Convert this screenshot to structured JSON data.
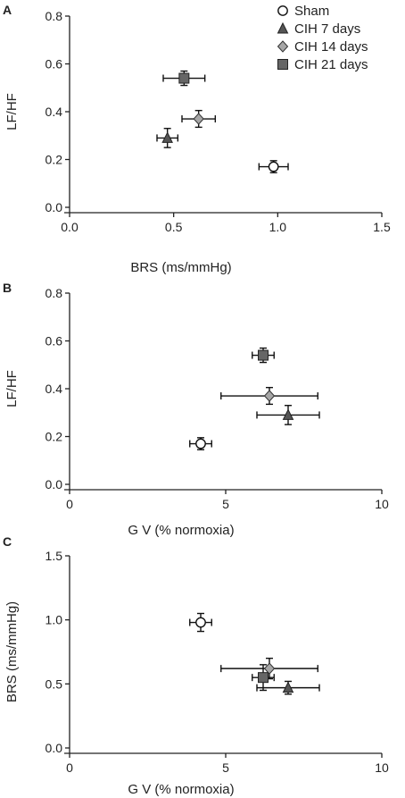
{
  "figure": {
    "legend": [
      {
        "name": "Sham",
        "marker": "circle",
        "fill": "#ffffff"
      },
      {
        "name": "CIH 7 days",
        "marker": "triangle",
        "fill": "#555555"
      },
      {
        "name": "CIH 14 days",
        "marker": "diamond",
        "fill": "#a6a6a6"
      },
      {
        "name": "CIH 21 days",
        "marker": "square",
        "fill": "#666666"
      }
    ]
  },
  "chart_data": [
    {
      "panel": "A",
      "type": "scatter",
      "xlabel": "BRS (ms/mmHg)",
      "ylabel": "LF/HF",
      "xlim": [
        0,
        1.5
      ],
      "ylim": [
        0,
        0.8
      ],
      "xticks": [
        "0.0",
        "0.5",
        "1.0",
        "1.5"
      ],
      "yticks": [
        "0.0",
        "0.2",
        "0.4",
        "0.6",
        "0.8"
      ],
      "legend_position": "top-right",
      "series": [
        {
          "name": "Sham",
          "x": 0.98,
          "y": 0.17,
          "xerr": 0.07,
          "yerr": 0.025
        },
        {
          "name": "CIH 7 days",
          "x": 0.47,
          "y": 0.29,
          "xerr": 0.05,
          "yerr": 0.04
        },
        {
          "name": "CIH 14 days",
          "x": 0.62,
          "y": 0.37,
          "xerr": 0.08,
          "yerr": 0.035
        },
        {
          "name": "CIH 21 days",
          "x": 0.55,
          "y": 0.54,
          "xerr": 0.1,
          "yerr": 0.03
        }
      ]
    },
    {
      "panel": "B",
      "type": "scatter",
      "xlabel": "G V (% normoxia)",
      "ylabel": "LF/HF",
      "xlim": [
        0,
        10
      ],
      "ylim": [
        0,
        0.8
      ],
      "xticks": [
        "0",
        "5",
        "10"
      ],
      "yticks": [
        "0.0",
        "0.2",
        "0.4",
        "0.6",
        "0.8"
      ],
      "series": [
        {
          "name": "Sham",
          "x": 4.2,
          "y": 0.17,
          "xerr": 0.35,
          "yerr": 0.025
        },
        {
          "name": "CIH 7 days",
          "x": 7.0,
          "y": 0.29,
          "xerr": 1.0,
          "yerr": 0.04
        },
        {
          "name": "CIH 14 days",
          "x": 6.4,
          "y": 0.37,
          "xerr": 1.55,
          "yerr": 0.035
        },
        {
          "name": "CIH 21 days",
          "x": 6.2,
          "y": 0.54,
          "xerr": 0.35,
          "yerr": 0.03
        }
      ]
    },
    {
      "panel": "C",
      "type": "scatter",
      "xlabel": "G V (% normoxia)",
      "ylabel": "BRS (ms/mmHg)",
      "xlim": [
        0,
        10
      ],
      "ylim": [
        0,
        1.5
      ],
      "xticks": [
        "0",
        "5",
        "10"
      ],
      "yticks": [
        "0.0",
        "0.5",
        "1.0",
        "1.5"
      ],
      "series": [
        {
          "name": "Sham",
          "x": 4.2,
          "y": 0.98,
          "xerr": 0.35,
          "yerr": 0.07
        },
        {
          "name": "CIH 7 days",
          "x": 7.0,
          "y": 0.47,
          "xerr": 1.0,
          "yerr": 0.05
        },
        {
          "name": "CIH 14 days",
          "x": 6.4,
          "y": 0.62,
          "xerr": 1.55,
          "yerr": 0.08
        },
        {
          "name": "CIH 21 days",
          "x": 6.2,
          "y": 0.55,
          "xerr": 0.35,
          "yerr": 0.1
        }
      ]
    }
  ]
}
